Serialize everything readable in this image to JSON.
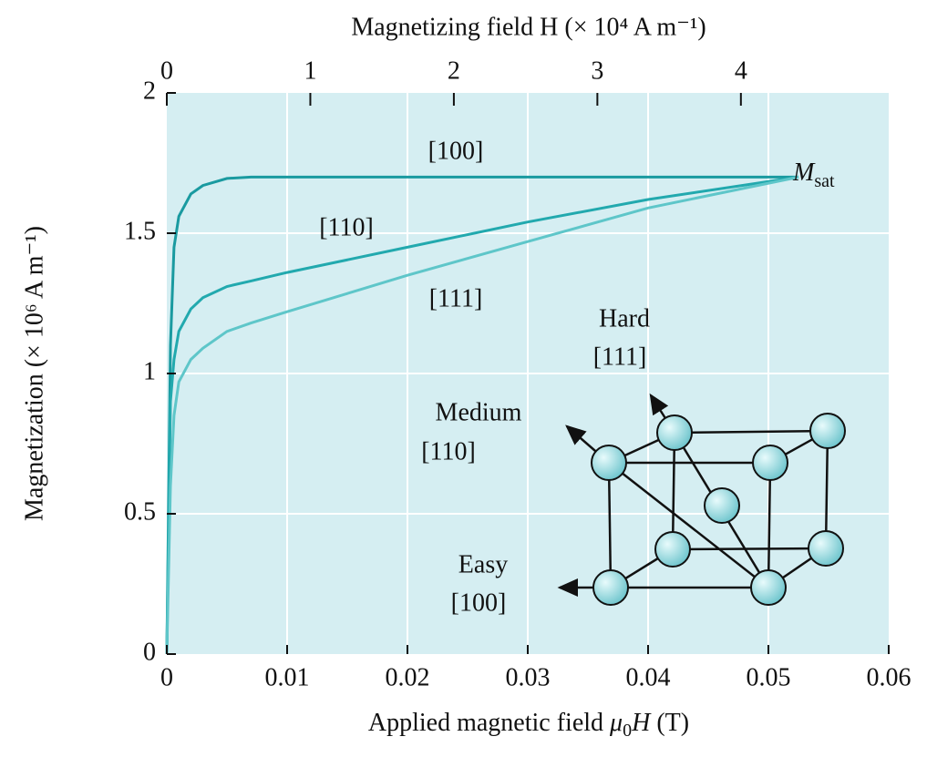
{
  "chart_data": {
    "type": "line",
    "top_axis_label": "Magnetizing field H (× 10⁴ A m⁻¹)",
    "ylabel": "Magnetization (× 10⁶ A m⁻¹)",
    "xlabel_parts": [
      "Applied magnetic field ",
      "μ",
      "0",
      "H",
      " (T)"
    ],
    "x": [
      0,
      0.0003,
      0.0006,
      0.001,
      0.002,
      0.003,
      0.005,
      0.007,
      0.01,
      0.02,
      0.03,
      0.04,
      0.0525
    ],
    "series": [
      {
        "name": "[100]",
        "color": "#1a9aa0",
        "values": [
          0,
          1.1,
          1.45,
          1.56,
          1.64,
          1.67,
          1.695,
          1.7,
          1.7,
          1.7,
          1.7,
          1.7,
          1.7
        ]
      },
      {
        "name": "[110]",
        "color": "#22a9ae",
        "values": [
          0,
          0.9,
          1.05,
          1.15,
          1.23,
          1.27,
          1.31,
          1.33,
          1.36,
          1.45,
          1.54,
          1.62,
          1.7
        ]
      },
      {
        "name": "[111]",
        "color": "#5ec6c9",
        "values": [
          0,
          0.6,
          0.85,
          0.97,
          1.05,
          1.09,
          1.15,
          1.18,
          1.22,
          1.35,
          1.47,
          1.59,
          1.7
        ]
      }
    ],
    "xlim": [
      0,
      0.06
    ],
    "xticks": [
      0,
      0.01,
      0.02,
      0.03,
      0.04,
      0.05,
      0.06
    ],
    "ylim": [
      0,
      2
    ],
    "yticks": [
      0,
      0.5,
      1,
      1.5,
      2
    ],
    "x2lim": [
      0,
      5.03
    ],
    "x2ticks": [
      0,
      1,
      2,
      3,
      4
    ],
    "grid": true,
    "msat_label": "M",
    "msat_subscript": "sat",
    "crystal_labels": {
      "hard": "Hard",
      "hard_dir": "[111]",
      "medium": "Medium",
      "medium_dir": "[110]",
      "easy": "Easy",
      "easy_dir": "[100]"
    }
  }
}
